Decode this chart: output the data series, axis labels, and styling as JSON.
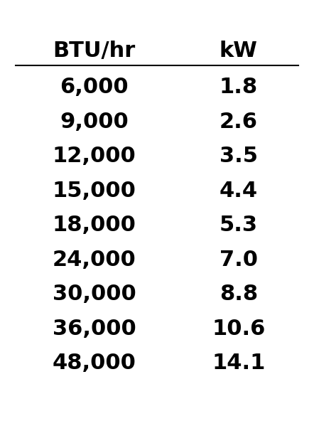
{
  "col1_header": "BTU/hr",
  "col2_header": "kW",
  "rows": [
    [
      "6,000",
      "1.8"
    ],
    [
      "9,000",
      "2.6"
    ],
    [
      "12,000",
      "3.5"
    ],
    [
      "15,000",
      "4.4"
    ],
    [
      "18,000",
      "5.3"
    ],
    [
      "24,000",
      "7.0"
    ],
    [
      "30,000",
      "8.8"
    ],
    [
      "36,000",
      "10.6"
    ],
    [
      "48,000",
      "14.1"
    ]
  ],
  "bg_color": "#ffffff",
  "text_color": "#000000",
  "header_fontsize": 22,
  "data_fontsize": 22,
  "fig_width": 4.42,
  "fig_height": 5.92,
  "dpi": 100
}
